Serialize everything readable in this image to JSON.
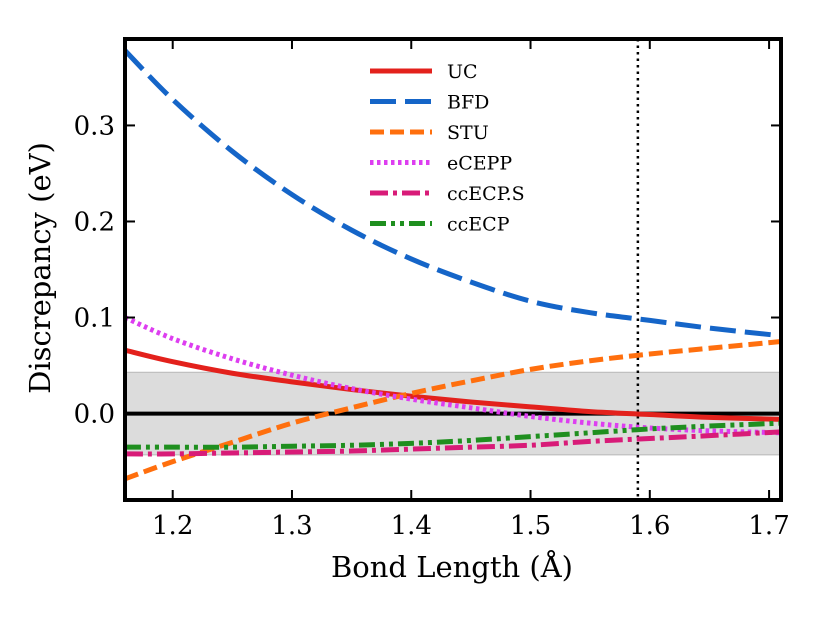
{
  "chart_data": {
    "type": "line",
    "xlabel": "Bond Length (Å)",
    "ylabel": "Discrepancy (eV)",
    "xlim": [
      1.16,
      1.71
    ],
    "ylim": [
      -0.09,
      0.39
    ],
    "xticks": [
      1.2,
      1.3,
      1.4,
      1.5,
      1.6,
      1.7
    ],
    "xtick_labels": [
      "1.2",
      "1.3",
      "1.4",
      "1.5",
      "1.6",
      "1.7"
    ],
    "yticks": [
      0.0,
      0.1,
      0.2,
      0.3
    ],
    "ytick_labels": [
      "0.0",
      "0.1",
      "0.2",
      "0.3"
    ],
    "grid": false,
    "legend_position": "top-center",
    "shaded_band": [
      -0.043,
      0.043
    ],
    "shaded_color": "#dcdcdc",
    "zero_line": 0.0,
    "vertical_reference_x": 1.59,
    "x": [
      1.16,
      1.2,
      1.25,
      1.3,
      1.35,
      1.4,
      1.45,
      1.5,
      1.55,
      1.6,
      1.65,
      1.71
    ],
    "series": [
      {
        "name": "UC",
        "color": "#e3211c",
        "dash": "solid",
        "values": [
          0.066,
          0.054,
          0.042,
          0.033,
          0.025,
          0.018,
          0.012,
          0.007,
          0.002,
          -0.001,
          -0.004,
          -0.006
        ]
      },
      {
        "name": "BFD",
        "color": "#1565c8",
        "dash": "long-dash",
        "values": [
          0.378,
          0.327,
          0.273,
          0.228,
          0.191,
          0.161,
          0.137,
          0.117,
          0.105,
          0.097,
          0.089,
          0.081
        ]
      },
      {
        "name": "STU",
        "color": "#ff6f0e",
        "dash": "dash",
        "values": [
          -0.068,
          -0.05,
          -0.03,
          -0.01,
          0.006,
          0.021,
          0.034,
          0.046,
          0.055,
          0.062,
          0.068,
          0.075
        ]
      },
      {
        "name": "eCEPP",
        "color": "#dd3ef0",
        "dash": "dot",
        "values": [
          0.1,
          0.078,
          0.057,
          0.04,
          0.026,
          0.015,
          0.006,
          -0.003,
          -0.01,
          -0.015,
          -0.018,
          -0.02
        ]
      },
      {
        "name": "ccECP.S",
        "color": "#d81b78",
        "dash": "dash-dot",
        "values": [
          -0.042,
          -0.042,
          -0.041,
          -0.04,
          -0.039,
          -0.037,
          -0.035,
          -0.033,
          -0.029,
          -0.026,
          -0.023,
          -0.019
        ]
      },
      {
        "name": "ccECP",
        "color": "#1f8f1f",
        "dash": "dash-dot-dot",
        "values": [
          -0.035,
          -0.035,
          -0.035,
          -0.034,
          -0.033,
          -0.031,
          -0.028,
          -0.024,
          -0.02,
          -0.016,
          -0.013,
          -0.01
        ]
      }
    ]
  }
}
